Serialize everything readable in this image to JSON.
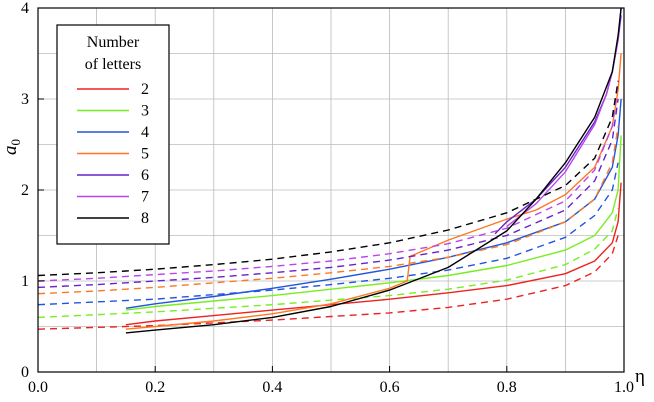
{
  "chart_data": {
    "type": "line",
    "title": "",
    "xlabel": "η",
    "ylabel_main": "a",
    "ylabel_sub": "0",
    "xlim": [
      0,
      1
    ],
    "ylim": [
      0,
      4
    ],
    "xticks": [
      0.0,
      0.2,
      0.4,
      0.6,
      0.8,
      1.0
    ],
    "xtick_labels": [
      "0.0",
      "0.2",
      "0.4",
      "0.6",
      "0.8",
      "1.0"
    ],
    "yticks": [
      0,
      1,
      2,
      3,
      4
    ],
    "ytick_labels": [
      "0",
      "1",
      "2",
      "3",
      "4"
    ],
    "grid": true,
    "legend": {
      "title_line1": "Number",
      "title_line2": "of letters",
      "placement": "top-left",
      "entries": [
        "2",
        "3",
        "4",
        "5",
        "6",
        "7",
        "8"
      ]
    },
    "colors": {
      "2": "#ee2222",
      "3": "#77ee22",
      "4": "#2255dd",
      "5": "#ff7722",
      "6": "#6622cc",
      "7": "#bb44ee",
      "8": "#000000"
    },
    "series": [
      {
        "name": "2",
        "style": "solid",
        "color": "#ee2222",
        "x": [
          0.15,
          0.2,
          0.3,
          0.4,
          0.5,
          0.6,
          0.7,
          0.8,
          0.9,
          0.95,
          0.98,
          0.99,
          0.995
        ],
        "y": [
          0.52,
          0.56,
          0.62,
          0.68,
          0.74,
          0.8,
          0.87,
          0.95,
          1.08,
          1.22,
          1.42,
          1.65,
          2.08
        ]
      },
      {
        "name": "2",
        "style": "dashed",
        "color": "#ee2222",
        "x": [
          0.0,
          0.1,
          0.2,
          0.3,
          0.4,
          0.5,
          0.6,
          0.7,
          0.8,
          0.9,
          0.95,
          0.98,
          0.99
        ],
        "y": [
          0.47,
          0.49,
          0.51,
          0.54,
          0.57,
          0.61,
          0.65,
          0.71,
          0.8,
          0.95,
          1.1,
          1.3,
          1.5
        ]
      },
      {
        "name": "3",
        "style": "solid",
        "color": "#77ee22",
        "x": [
          0.15,
          0.2,
          0.3,
          0.4,
          0.5,
          0.6,
          0.7,
          0.8,
          0.9,
          0.95,
          0.98,
          0.99,
          0.995
        ],
        "y": [
          0.68,
          0.72,
          0.78,
          0.84,
          0.91,
          0.98,
          1.06,
          1.17,
          1.34,
          1.5,
          1.75,
          2.0,
          2.6
        ]
      },
      {
        "name": "3",
        "style": "dashed",
        "color": "#77ee22",
        "x": [
          0.0,
          0.1,
          0.2,
          0.3,
          0.4,
          0.5,
          0.6,
          0.7,
          0.8,
          0.9,
          0.95,
          0.98,
          0.99
        ],
        "y": [
          0.6,
          0.63,
          0.66,
          0.7,
          0.74,
          0.79,
          0.84,
          0.91,
          1.01,
          1.18,
          1.35,
          1.55,
          1.8
        ]
      },
      {
        "name": "4",
        "style": "solid",
        "color": "#2255dd",
        "x": [
          0.15,
          0.2,
          0.3,
          0.4,
          0.5,
          0.6,
          0.7,
          0.8,
          0.9,
          0.95,
          0.98,
          0.99,
          0.995
        ],
        "y": [
          0.7,
          0.75,
          0.83,
          0.92,
          1.02,
          1.13,
          1.26,
          1.42,
          1.65,
          1.9,
          2.25,
          2.6,
          3.0
        ]
      },
      {
        "name": "4",
        "style": "dashed",
        "color": "#2255dd",
        "x": [
          0.0,
          0.1,
          0.2,
          0.3,
          0.4,
          0.5,
          0.6,
          0.7,
          0.8,
          0.9,
          0.95,
          0.98,
          0.99
        ],
        "y": [
          0.74,
          0.77,
          0.8,
          0.85,
          0.9,
          0.96,
          1.03,
          1.12,
          1.25,
          1.48,
          1.72,
          2.0,
          2.3
        ]
      },
      {
        "name": "5",
        "style": "solid",
        "color": "#ff7722",
        "x": [
          0.15,
          0.2,
          0.3,
          0.4,
          0.5,
          0.6,
          0.63,
          0.635,
          0.7,
          0.8,
          0.85,
          0.9,
          0.95,
          0.98,
          0.99,
          0.995
        ],
        "y": [
          0.47,
          0.5,
          0.56,
          0.64,
          0.75,
          0.92,
          1.0,
          1.27,
          1.45,
          1.68,
          1.78,
          1.95,
          2.25,
          2.7,
          3.1,
          3.5
        ]
      },
      {
        "name": "5",
        "style": "dashed",
        "color": "#ff7722",
        "x": [
          0.0,
          0.1,
          0.2,
          0.3,
          0.4,
          0.5,
          0.6,
          0.7,
          0.8,
          0.9,
          0.95,
          0.98,
          0.99
        ],
        "y": [
          0.86,
          0.89,
          0.93,
          0.98,
          1.03,
          1.09,
          1.16,
          1.26,
          1.4,
          1.65,
          1.9,
          2.3,
          2.7
        ]
      },
      {
        "name": "6",
        "style": "solid",
        "color": "#6622cc",
        "x": [
          0.78,
          0.8,
          0.85,
          0.9,
          0.95,
          0.97,
          0.98,
          0.99,
          0.995
        ],
        "y": [
          1.52,
          1.65,
          1.9,
          2.25,
          2.75,
          3.05,
          3.3,
          3.65,
          3.92
        ]
      },
      {
        "name": "6",
        "style": "dashed",
        "color": "#6622cc",
        "x": [
          0.0,
          0.1,
          0.2,
          0.3,
          0.4,
          0.5,
          0.6,
          0.7,
          0.8,
          0.9,
          0.95,
          0.98,
          0.99
        ],
        "y": [
          0.93,
          0.96,
          1.0,
          1.04,
          1.09,
          1.15,
          1.23,
          1.34,
          1.5,
          1.78,
          2.1,
          2.55,
          3.0
        ]
      },
      {
        "name": "7",
        "style": "solid",
        "color": "#bb44ee",
        "x": [
          0.8,
          0.85,
          0.9,
          0.95,
          0.97,
          0.98,
          0.99,
          0.995
        ],
        "y": [
          1.6,
          1.85,
          2.2,
          2.72,
          3.05,
          3.3,
          3.65,
          4.0
        ]
      },
      {
        "name": "7",
        "style": "dashed",
        "color": "#bb44ee",
        "x": [
          0.0,
          0.1,
          0.2,
          0.3,
          0.4,
          0.5,
          0.6,
          0.7,
          0.8,
          0.9,
          0.95,
          0.98,
          0.99
        ],
        "y": [
          1.0,
          1.03,
          1.07,
          1.11,
          1.16,
          1.22,
          1.3,
          1.41,
          1.58,
          1.88,
          2.22,
          2.7,
          3.2
        ]
      },
      {
        "name": "8",
        "style": "solid",
        "color": "#000000",
        "x": [
          0.15,
          0.2,
          0.3,
          0.4,
          0.5,
          0.6,
          0.7,
          0.8,
          0.85,
          0.9,
          0.95,
          0.98,
          0.99,
          0.995
        ],
        "y": [
          0.43,
          0.46,
          0.52,
          0.6,
          0.72,
          0.9,
          1.15,
          1.55,
          1.9,
          2.3,
          2.8,
          3.3,
          3.7,
          4.0
        ]
      },
      {
        "name": "8",
        "style": "dashed",
        "color": "#000000",
        "x": [
          0.0,
          0.1,
          0.2,
          0.3,
          0.4,
          0.5,
          0.6,
          0.7,
          0.8,
          0.9,
          0.95,
          0.98,
          0.99
        ],
        "y": [
          1.06,
          1.09,
          1.13,
          1.18,
          1.24,
          1.32,
          1.42,
          1.56,
          1.75,
          2.05,
          2.35,
          2.8,
          3.2
        ]
      }
    ]
  }
}
